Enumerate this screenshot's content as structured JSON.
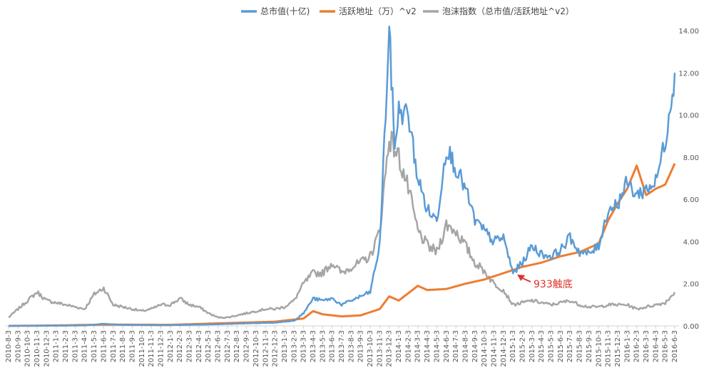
{
  "chart_data": {
    "type": "line",
    "title": "",
    "xlabel": "",
    "ylabel": "",
    "ylim": [
      0,
      14
    ],
    "y_ticks": [
      "0.00",
      "2.00",
      "4.00",
      "6.00",
      "8.00",
      "10.00",
      "12.00",
      "14.00"
    ],
    "y_tick_values": [
      0,
      2,
      4,
      6,
      8,
      10,
      12,
      14
    ],
    "grid": false,
    "legend_position": "top",
    "x_labels": [
      "2010-8-3",
      "2010-9-3",
      "2010-10-3",
      "2010-11-3",
      "2010-12-3",
      "2011-1-3",
      "2011-2-3",
      "2011-3-3",
      "2011-4-3",
      "2011-5-3",
      "2011-6-3",
      "2011-7-3",
      "2011-8-3",
      "2011-9-3",
      "2011-10-3",
      "2011-11-3",
      "2011-12-3",
      "2012-1-3",
      "2012-2-3",
      "2012-3-3",
      "2012-4-3",
      "2012-5-3",
      "2012-6-3",
      "2012-7-3",
      "2012-8-3",
      "2012-9-3",
      "2012-10-3",
      "2012-11-3",
      "2012-12-3",
      "2013-1-3",
      "2013-2-3",
      "2013-3-3",
      "2013-4-3",
      "2013-5-3",
      "2013-6-3",
      "2013-7-3",
      "2013-8-3",
      "2013-9-3",
      "2013-10-3",
      "2013-11-3",
      "2013-12-3",
      "2014-1-3",
      "2014-2-3",
      "2014-3-3",
      "2014-4-3",
      "2014-5-3",
      "2014-6-3",
      "2014-7-3",
      "2014-8-3",
      "2014-9-3",
      "2014-10-3",
      "2014-11-3",
      "2014-12-3",
      "2015-1-3",
      "2015-2-3",
      "2015-3-3",
      "2015-4-3",
      "2015-5-3",
      "2015-6-3",
      "2015-7-3",
      "2015-8-3",
      "2015-9-3",
      "2015-10-3",
      "2015-11-3",
      "2015-12-3",
      "2016-1-3",
      "2016-2-3",
      "2016-3-3",
      "2016-4-3",
      "2016-5-3",
      "2016-6-3"
    ],
    "series": [
      {
        "name": "总市值(十亿)",
        "color": "#5b9bd5",
        "points": [
          [
            "2010-8-3",
            0.0
          ],
          [
            "2010-12-3",
            0.01
          ],
          [
            "2011-4-3",
            0.02
          ],
          [
            "2011-6-3",
            0.1
          ],
          [
            "2011-8-3",
            0.05
          ],
          [
            "2011-12-3",
            0.03
          ],
          [
            "2012-3-3",
            0.05
          ],
          [
            "2012-6-3",
            0.08
          ],
          [
            "2012-9-3",
            0.12
          ],
          [
            "2012-12-3",
            0.15
          ],
          [
            "2013-2-3",
            0.25
          ],
          [
            "2013-3-3",
            0.6
          ],
          [
            "2013-4-3",
            1.3
          ],
          [
            "2013-5-3",
            1.2
          ],
          [
            "2013-6-3",
            1.3
          ],
          [
            "2013-7-3",
            1.0
          ],
          [
            "2013-8-3",
            1.2
          ],
          [
            "2013-9-3",
            1.4
          ],
          [
            "2013-10-3",
            1.6
          ],
          [
            "2013-11-3",
            3.8
          ],
          [
            "2013-12-3",
            14.0
          ],
          [
            "2013-12-20",
            8.5
          ],
          [
            "2014-1-3",
            10.2
          ],
          [
            "2014-2-3",
            10.0
          ],
          [
            "2014-3-3",
            7.0
          ],
          [
            "2014-4-3",
            5.5
          ],
          [
            "2014-5-3",
            5.0
          ],
          [
            "2014-6-3",
            8.5
          ],
          [
            "2014-7-3",
            7.5
          ],
          [
            "2014-8-3",
            6.5
          ],
          [
            "2014-9-3",
            5.0
          ],
          [
            "2014-10-3",
            4.5
          ],
          [
            "2014-11-3",
            4.0
          ],
          [
            "2014-12-3",
            4.2
          ],
          [
            "2015-1-3",
            2.5
          ],
          [
            "2015-2-3",
            3.0
          ],
          [
            "2015-3-3",
            3.8
          ],
          [
            "2015-4-3",
            3.4
          ],
          [
            "2015-5-3",
            3.3
          ],
          [
            "2015-6-3",
            3.6
          ],
          [
            "2015-7-3",
            4.2
          ],
          [
            "2015-8-3",
            3.5
          ],
          [
            "2015-9-3",
            3.4
          ],
          [
            "2015-10-3",
            3.8
          ],
          [
            "2015-11-3",
            5.5
          ],
          [
            "2015-12-3",
            5.8
          ],
          [
            "2016-1-3",
            6.8
          ],
          [
            "2016-2-3",
            6.2
          ],
          [
            "2016-3-3",
            6.5
          ],
          [
            "2016-4-3",
            6.8
          ],
          [
            "2016-5-3",
            8.8
          ],
          [
            "2016-6-3",
            12.0
          ]
        ]
      },
      {
        "name": "活跃地址（万）^v2",
        "color": "#ed7d31",
        "points": [
          [
            "2010-8-3",
            0.0
          ],
          [
            "2011-1-3",
            0.02
          ],
          [
            "2011-6-3",
            0.06
          ],
          [
            "2012-1-3",
            0.05
          ],
          [
            "2012-6-3",
            0.12
          ],
          [
            "2012-12-3",
            0.2
          ],
          [
            "2013-3-3",
            0.35
          ],
          [
            "2013-4-3",
            0.7
          ],
          [
            "2013-5-3",
            0.55
          ],
          [
            "2013-7-3",
            0.45
          ],
          [
            "2013-9-3",
            0.5
          ],
          [
            "2013-11-3",
            0.8
          ],
          [
            "2013-12-3",
            1.4
          ],
          [
            "2014-1-3",
            1.2
          ],
          [
            "2014-3-3",
            1.9
          ],
          [
            "2014-4-3",
            1.7
          ],
          [
            "2014-6-3",
            1.75
          ],
          [
            "2014-8-3",
            2.0
          ],
          [
            "2014-10-3",
            2.2
          ],
          [
            "2014-12-3",
            2.5
          ],
          [
            "2015-2-3",
            2.8
          ],
          [
            "2015-4-3",
            3.0
          ],
          [
            "2015-6-3",
            3.3
          ],
          [
            "2015-8-3",
            3.5
          ],
          [
            "2015-10-3",
            3.9
          ],
          [
            "2015-11-3",
            5.0
          ],
          [
            "2015-12-3",
            5.8
          ],
          [
            "2016-1-3",
            6.5
          ],
          [
            "2016-2-3",
            7.6
          ],
          [
            "2016-3-3",
            6.2
          ],
          [
            "2016-4-3",
            6.5
          ],
          [
            "2016-5-3",
            6.7
          ],
          [
            "2016-6-3",
            7.7
          ]
        ]
      },
      {
        "name": "泡沫指数（总市值/活跃地址^v2）",
        "color": "#a5a5a5",
        "points": [
          [
            "2010-8-3",
            0.4
          ],
          [
            "2010-9-3",
            0.8
          ],
          [
            "2010-10-3",
            1.2
          ],
          [
            "2010-11-3",
            1.6
          ],
          [
            "2010-12-3",
            1.2
          ],
          [
            "2011-1-3",
            1.1
          ],
          [
            "2011-2-3",
            1.0
          ],
          [
            "2011-3-3",
            0.9
          ],
          [
            "2011-4-3",
            0.8
          ],
          [
            "2011-5-3",
            1.5
          ],
          [
            "2011-6-3",
            1.8
          ],
          [
            "2011-7-3",
            1.0
          ],
          [
            "2011-8-3",
            0.9
          ],
          [
            "2011-9-3",
            0.8
          ],
          [
            "2011-10-3",
            0.7
          ],
          [
            "2011-11-3",
            0.8
          ],
          [
            "2011-12-3",
            1.0
          ],
          [
            "2012-1-3",
            1.0
          ],
          [
            "2012-2-3",
            1.3
          ],
          [
            "2012-3-3",
            1.0
          ],
          [
            "2012-4-3",
            0.9
          ],
          [
            "2012-5-3",
            0.6
          ],
          [
            "2012-6-3",
            0.4
          ],
          [
            "2012-7-3",
            0.4
          ],
          [
            "2012-8-3",
            0.5
          ],
          [
            "2012-9-3",
            0.6
          ],
          [
            "2012-10-3",
            0.7
          ],
          [
            "2012-11-3",
            0.8
          ],
          [
            "2012-12-3",
            0.8
          ],
          [
            "2013-1-3",
            0.9
          ],
          [
            "2013-2-3",
            1.2
          ],
          [
            "2013-3-3",
            2.0
          ],
          [
            "2013-4-3",
            2.5
          ],
          [
            "2013-5-3",
            2.5
          ],
          [
            "2013-6-3",
            3.0
          ],
          [
            "2013-7-3",
            2.5
          ],
          [
            "2013-8-3",
            2.8
          ],
          [
            "2013-9-3",
            3.0
          ],
          [
            "2013-10-3",
            3.3
          ],
          [
            "2013-11-3",
            4.5
          ],
          [
            "2013-12-3",
            9.0
          ],
          [
            "2014-1-3",
            8.0
          ],
          [
            "2014-2-3",
            6.5
          ],
          [
            "2014-3-3",
            4.5
          ],
          [
            "2014-4-3",
            3.8
          ],
          [
            "2014-5-3",
            3.5
          ],
          [
            "2014-6-3",
            4.8
          ],
          [
            "2014-7-3",
            4.5
          ],
          [
            "2014-8-3",
            3.8
          ],
          [
            "2014-9-3",
            3.0
          ],
          [
            "2014-10-3",
            2.6
          ],
          [
            "2014-11-3",
            2.0
          ],
          [
            "2014-12-3",
            1.7
          ],
          [
            "2015-1-3",
            1.0
          ],
          [
            "2015-2-3",
            1.1
          ],
          [
            "2015-3-3",
            1.2
          ],
          [
            "2015-4-3",
            1.1
          ],
          [
            "2015-5-3",
            1.0
          ],
          [
            "2015-6-3",
            1.1
          ],
          [
            "2015-7-3",
            1.2
          ],
          [
            "2015-8-3",
            1.0
          ],
          [
            "2015-9-3",
            0.9
          ],
          [
            "2015-10-3",
            0.9
          ],
          [
            "2015-11-3",
            1.0
          ],
          [
            "2015-12-3",
            1.0
          ],
          [
            "2016-1-3",
            1.0
          ],
          [
            "2016-2-3",
            0.8
          ],
          [
            "2016-3-3",
            0.9
          ],
          [
            "2016-4-3",
            1.0
          ],
          [
            "2016-5-3",
            1.1
          ],
          [
            "2016-6-3",
            1.6
          ]
        ]
      }
    ],
    "annotation": {
      "text": "933触底",
      "color": "#e0312b",
      "target": [
        "2015-1-3",
        2.5
      ]
    }
  }
}
